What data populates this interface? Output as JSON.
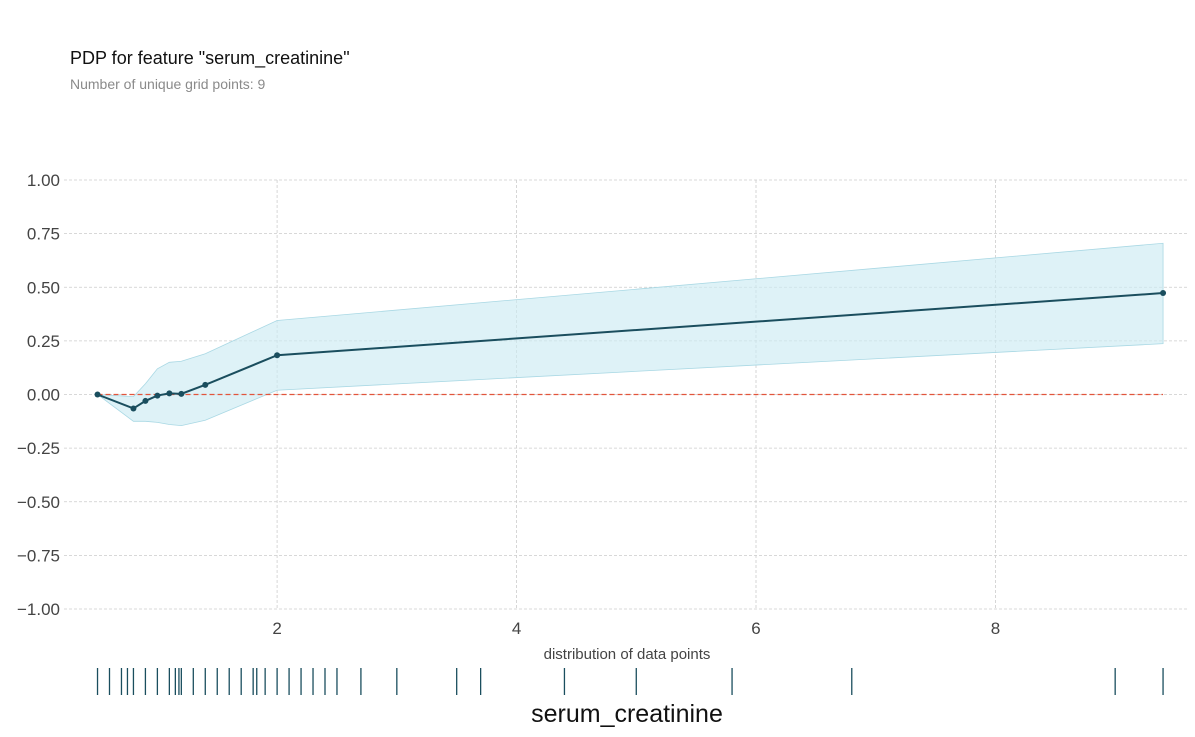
{
  "title": "PDP for feature \"serum_creatinine\"",
  "subtitle": "Number of unique grid points: 9",
  "colors": {
    "line": "#1a4e5e",
    "band": "#cdebf2",
    "zero_line": "#e2553c",
    "grid": "#cccccc",
    "rug": "#1a4e5e"
  },
  "chart_data": {
    "type": "line",
    "title": "PDP for feature \"serum_creatinine\"",
    "subtitle": "Number of unique grid points: 9",
    "xlabel": "serum_creatinine",
    "rug_label": "distribution of data points",
    "xlim": [
      0.22,
      9.6
    ],
    "ylim": [
      -1.0,
      1.0
    ],
    "xticks": [
      2,
      4,
      6,
      8
    ],
    "xtick_labels": [
      "2",
      "4",
      "6",
      "8"
    ],
    "yticks": [
      1.0,
      0.75,
      0.5,
      0.25,
      0.0,
      -0.25,
      -0.5,
      -0.75,
      -1.0
    ],
    "ytick_labels": [
      "1.00",
      "0.75",
      "0.50",
      "0.25",
      "0.00",
      "−0.25",
      "−0.50",
      "−0.75",
      "−1.00"
    ],
    "grid": true,
    "series": [
      {
        "x": [
          0.5,
          0.8,
          0.9,
          1.0,
          1.1,
          1.2,
          1.4,
          2.0,
          9.4
        ],
        "y": [
          0.0,
          -0.065,
          -0.03,
          -0.005,
          0.005,
          0.003,
          0.045,
          0.183,
          0.473
        ],
        "upper": [
          0.0,
          -0.01,
          0.05,
          0.12,
          0.15,
          0.155,
          0.19,
          0.345,
          0.705
        ],
        "lower": [
          0.0,
          -0.125,
          -0.125,
          -0.13,
          -0.14,
          -0.145,
          -0.12,
          0.02,
          0.237
        ]
      }
    ],
    "reference_line": {
      "y": 0.0,
      "style": "dashed"
    },
    "rug": [
      0.5,
      0.6,
      0.7,
      0.75,
      0.8,
      0.9,
      1.0,
      1.1,
      1.15,
      1.18,
      1.2,
      1.3,
      1.4,
      1.5,
      1.6,
      1.7,
      1.8,
      1.83,
      1.9,
      2.0,
      2.1,
      2.2,
      2.3,
      2.4,
      2.5,
      2.7,
      3.0,
      3.5,
      3.7,
      4.4,
      5.0,
      5.8,
      6.8,
      9.0,
      9.4
    ]
  }
}
